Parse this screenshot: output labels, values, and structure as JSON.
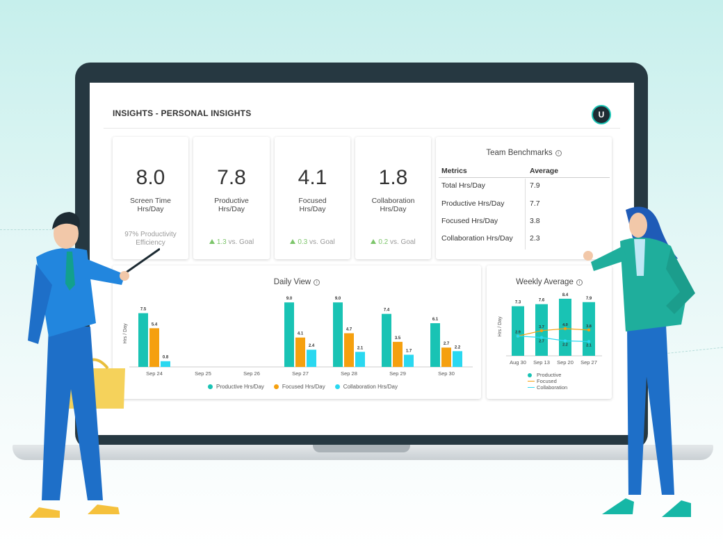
{
  "header": {
    "title": "INSIGHTS - PERSONAL INSIGHTS",
    "avatar_initial": "U"
  },
  "stats": [
    {
      "value": "8.0",
      "label_line1": "Screen Time",
      "label_line2": "Hrs/Day",
      "foot_line1": "97% Productivity",
      "foot_line2": "Efficiency"
    },
    {
      "value": "7.8",
      "label_line1": "Productive",
      "label_line2": "Hrs/Day",
      "goal_value": "1.3",
      "goal_text": "vs. Goal"
    },
    {
      "value": "4.1",
      "label_line1": "Focused",
      "label_line2": "Hrs/Day",
      "goal_value": "0.3",
      "goal_text": "vs. Goal"
    },
    {
      "value": "1.8",
      "label_line1": "Collaboration",
      "label_line2": "Hrs/Day",
      "goal_value": "0.2",
      "goal_text": "vs. Goal"
    }
  ],
  "benchmarks": {
    "title": "Team Benchmarks",
    "col_metrics": "Metrics",
    "col_average": "Average",
    "rows": [
      {
        "metric": "Total Hrs/Day",
        "average": "7.9"
      },
      {
        "metric": "Productive Hrs/Day",
        "average": "7.7"
      },
      {
        "metric": "Focused Hrs/Day",
        "average": "3.8"
      },
      {
        "metric": "Collaboration Hrs/Day",
        "average": "2.3"
      }
    ]
  },
  "colors": {
    "productive": "#19c3b4",
    "focused": "#f5a00f",
    "collaboration": "#2ad8f0",
    "accent": "#19c3b4"
  },
  "daily": {
    "title": "Daily View",
    "ylabel": "Hrs / Day",
    "legend": [
      "Productive Hrs/Day",
      "Focused Hrs/Day",
      "Collaboration Hrs/Day"
    ]
  },
  "weekly": {
    "title": "Weekly Average",
    "ylabel": "Hrs / Day",
    "legend": [
      "Productive",
      "Focused",
      "Collaboration"
    ]
  },
  "chart_data": [
    {
      "type": "bar",
      "title": "Daily View",
      "ylabel": "Hrs / Day",
      "categories": [
        "Sep 24",
        "Sep 25",
        "Sep 26",
        "Sep 27",
        "Sep 28",
        "Sep 29",
        "Sep 30"
      ],
      "series": [
        {
          "name": "Productive Hrs/Day",
          "values": [
            7.5,
            null,
            null,
            9.0,
            9.0,
            7.4,
            6.1
          ]
        },
        {
          "name": "Focused Hrs/Day",
          "values": [
            5.4,
            null,
            null,
            4.1,
            4.7,
            3.5,
            2.7
          ]
        },
        {
          "name": "Collaboration Hrs/Day",
          "values": [
            0.8,
            null,
            null,
            2.4,
            2.1,
            1.7,
            2.2
          ]
        }
      ],
      "ylim": [
        0,
        9.5
      ],
      "legend": "bottom"
    },
    {
      "type": "bar",
      "title": "Weekly Average",
      "ylabel": "Hrs / Day",
      "categories": [
        "Aug 30",
        "Sep 13",
        "Sep 20",
        "Sep 27"
      ],
      "series": [
        {
          "name": "Productive",
          "type": "bar",
          "values": [
            7.3,
            7.6,
            8.4,
            7.9
          ]
        },
        {
          "name": "Focused",
          "type": "line",
          "values": [
            2.9,
            3.7,
            4.0,
            3.8
          ]
        },
        {
          "name": "Collaboration",
          "type": "line",
          "values": [
            2.9,
            2.7,
            2.2,
            2.1
          ]
        }
      ],
      "data_labels": {
        "Focused": [
          "2.9",
          "3.7",
          "4.0",
          "3.8"
        ],
        "Collaboration": [
          "",
          "2.7",
          "2.2",
          "2.1"
        ]
      },
      "ylim": [
        0,
        9
      ],
      "legend": "bottom"
    }
  ]
}
